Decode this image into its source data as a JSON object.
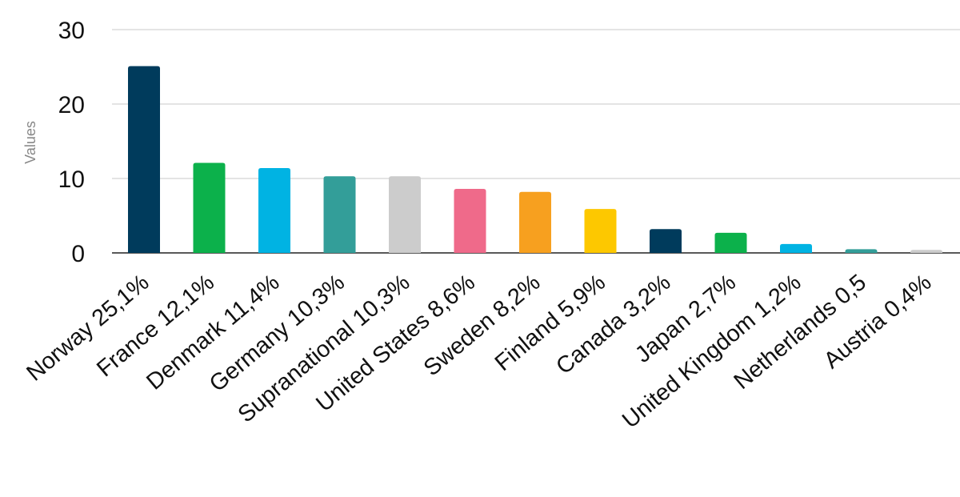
{
  "chart_data": {
    "type": "bar",
    "title": "",
    "xlabel": "",
    "ylabel": "Values",
    "ylim": [
      0,
      30
    ],
    "yticks": [
      0,
      10,
      20,
      30
    ],
    "grid": true,
    "categories": [
      "Norway 25,1%",
      "France 12,1%",
      "Denmark 11,4%",
      "Germany 10,3%",
      "Supranational 10,3%",
      "United States 8,6%",
      "Sweden 8,2%",
      "Finland 5,9%",
      "Canada 3,2%",
      "Japan 2,7%",
      "United Kingdom 1,2%",
      "Netherlands 0,5",
      "Austria 0,4%"
    ],
    "values": [
      25.1,
      12.1,
      11.4,
      10.3,
      10.3,
      8.6,
      8.2,
      5.9,
      3.2,
      2.7,
      1.2,
      0.5,
      0.4
    ],
    "colors": [
      "#003b5c",
      "#0cb14b",
      "#00b3e3",
      "#339e99",
      "#cccccc",
      "#ef6a8a",
      "#f7a01f",
      "#fdc800",
      "#003b5c",
      "#0cb14b",
      "#00b3e3",
      "#339e99",
      "#cccccc"
    ]
  }
}
